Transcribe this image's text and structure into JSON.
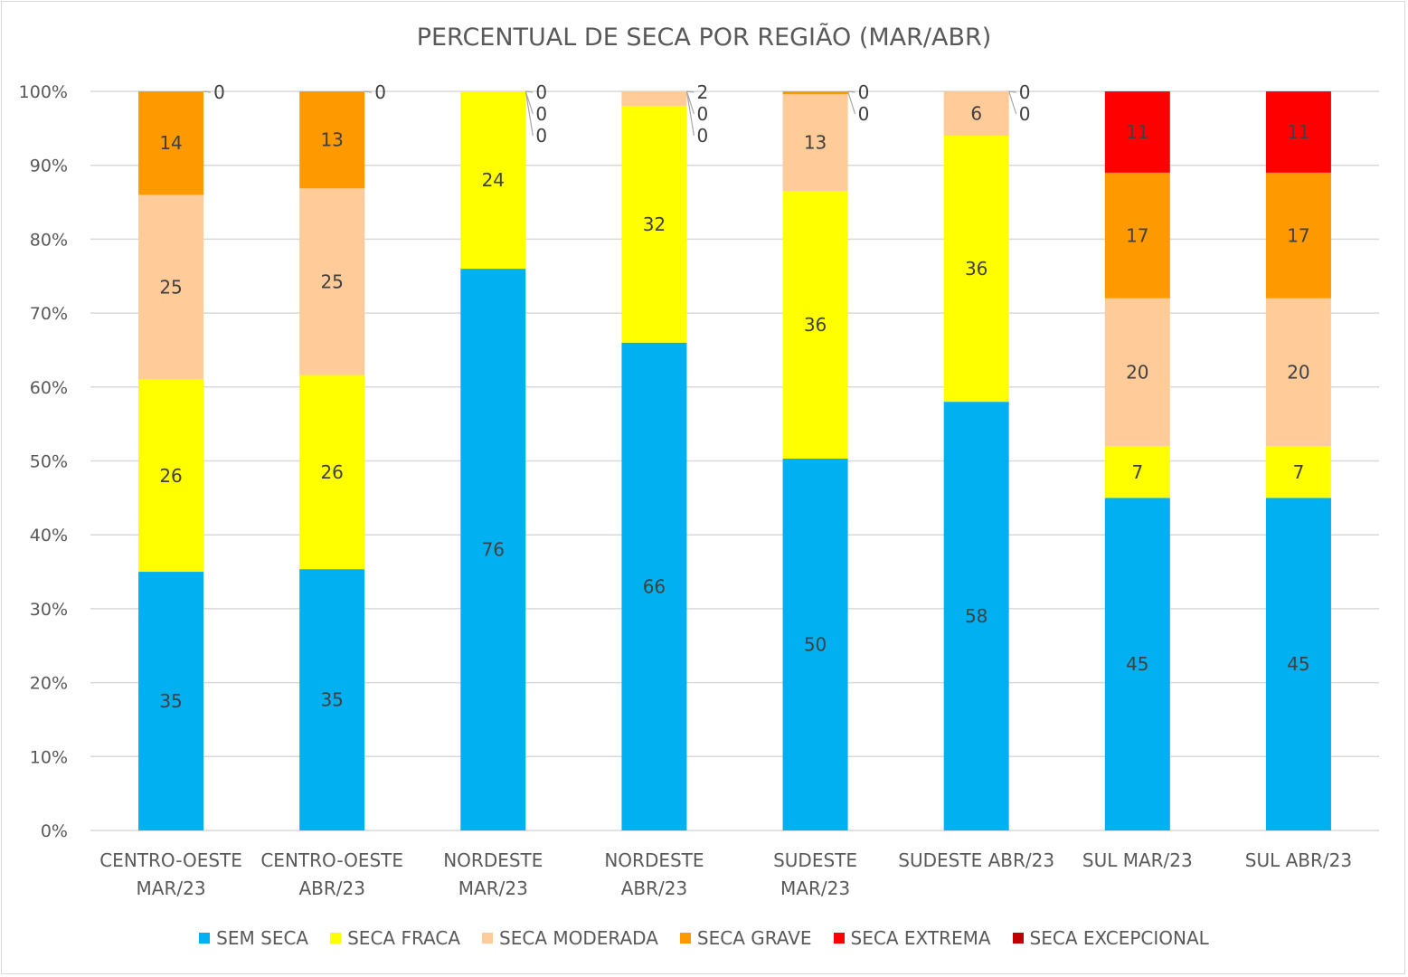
{
  "chart_data": {
    "type": "bar",
    "stacked": "percent",
    "title": "PERCENTUAL DE SECA POR REGIÃO (MAR/ABR)",
    "categories": [
      [
        "CENTRO-OESTE",
        "MAR/23"
      ],
      [
        "CENTRO-OESTE",
        "ABR/23"
      ],
      [
        "NORDESTE",
        "MAR/23"
      ],
      [
        "NORDESTE",
        "ABR/23"
      ],
      [
        "SUDESTE",
        "MAR/23"
      ],
      [
        "SUDESTE ABR/23"
      ],
      [
        "SUL MAR/23"
      ],
      [
        "SUL ABR/23"
      ]
    ],
    "series": [
      {
        "name": "SEM SECA",
        "color": "#00b0f0",
        "values": [
          35,
          35,
          76,
          66,
          50,
          58,
          45,
          45
        ]
      },
      {
        "name": "SECA FRACA",
        "color": "#ffff00",
        "values": [
          26,
          26,
          24,
          32,
          36,
          36,
          7,
          7
        ]
      },
      {
        "name": "SECA MODERADA",
        "color": "#ffcc99",
        "values": [
          25,
          25,
          0,
          2,
          13,
          6,
          20,
          20
        ]
      },
      {
        "name": "SECA GRAVE",
        "color": "#ff9900",
        "values": [
          14,
          13,
          0,
          0,
          0.4,
          0,
          17,
          17
        ]
      },
      {
        "name": "SECA EXTREMA",
        "color": "#ff0000",
        "values": [
          0,
          0,
          0,
          0,
          0,
          0,
          11,
          11
        ]
      },
      {
        "name": "SECA EXCEPCIONAL",
        "color": "#c00000",
        "values": [
          0,
          0,
          0,
          0,
          0,
          0,
          0,
          0
        ]
      }
    ],
    "yticks": [
      "0%",
      "10%",
      "20%",
      "30%",
      "40%",
      "50%",
      "60%",
      "70%",
      "80%",
      "90%",
      "100%"
    ],
    "ylim": [
      0,
      100
    ],
    "grid": true,
    "legend": "bottom",
    "data_labels": true
  }
}
